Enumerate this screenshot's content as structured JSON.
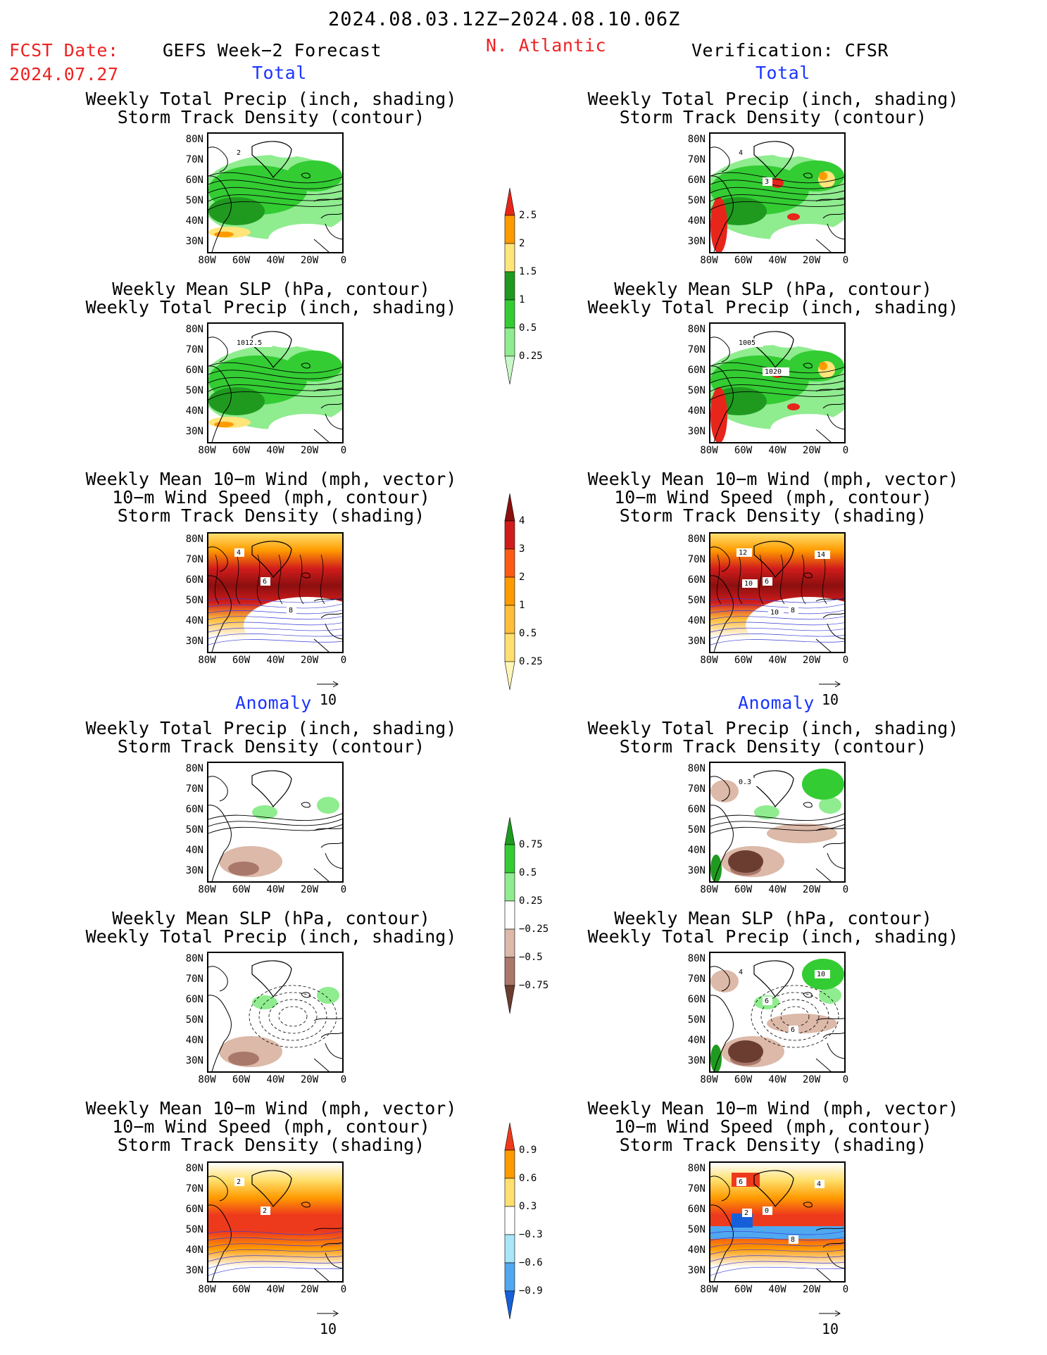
{
  "header": {
    "date_range": "2024.08.03.12Z−2024.08.10.06Z",
    "fcst_label": "FCST Date:",
    "fcst_date": "2024.07.27",
    "forecast_title": "GEFS Week−2 Forecast",
    "region": "N. Atlantic",
    "verification": "Verification: CFSR"
  },
  "sections": {
    "total": "Total",
    "anomaly": "Anomaly"
  },
  "panel_titles": {
    "precip_track": "Weekly Total Precip (inch, shading)\nStorm Track Density (contour)",
    "slp_precip": "Weekly Mean SLP (hPa, contour)\nWeekly Total Precip (inch, shading)",
    "wind_track": "Weekly Mean 10−m Wind (mph, vector)\n10−m Wind Speed (mph, contour)\nStorm Track Density (shading)"
  },
  "axes": {
    "lat_labels": [
      "80N",
      "70N",
      "60N",
      "50N",
      "40N",
      "30N"
    ],
    "lon_labels": [
      "80W",
      "60W",
      "40W",
      "20W",
      "0"
    ]
  },
  "vector_reference": "10",
  "colorbars": {
    "precip_total": {
      "labels": [
        "2.5",
        "2",
        "1.5",
        "1",
        "0.5",
        "0.25"
      ],
      "colors": [
        "#e8251b",
        "#ff9a00",
        "#ffe57a",
        "#1f9a1f",
        "#33cc33",
        "#8fec8f",
        "#c8f7c8"
      ]
    },
    "track_total": {
      "labels": [
        "4",
        "3",
        "2",
        "1",
        "0.5",
        "0.25"
      ],
      "colors": [
        "#8c0f0f",
        "#d11c1c",
        "#ff5a14",
        "#ff9a00",
        "#ffbe3a",
        "#ffe06e",
        "#fff6b8"
      ]
    },
    "precip_anom": {
      "labels": [
        "0.75",
        "0.5",
        "0.25",
        "−0.25",
        "−0.5",
        "−0.75"
      ],
      "colors": [
        "#1f9a1f",
        "#33cc33",
        "#8fec8f",
        "#ffffff",
        "#dcb9a8",
        "#a9786a",
        "#6b3d31"
      ]
    },
    "track_anom": {
      "labels": [
        "0.9",
        "0.6",
        "0.3",
        "−0.3",
        "−0.6",
        "−0.9"
      ],
      "colors": [
        "#ee3a1c",
        "#ff9a00",
        "#ffe06e",
        "#ffffff",
        "#a8e6f8",
        "#4fa8f0",
        "#1560d8"
      ]
    }
  },
  "contour_labels": {
    "gefs_total_precip": [
      "2"
    ],
    "cfsr_total_precip": [
      "4",
      "3"
    ],
    "gefs_total_slp": [
      "1012.5"
    ],
    "cfsr_total_slp": [
      "1005",
      "1020"
    ],
    "gefs_total_wind": [
      "4",
      "6",
      "8"
    ],
    "cfsr_total_wind": [
      "12",
      "6",
      "8",
      "14",
      "10",
      "10"
    ],
    "cfsr_anom_precip": [
      "0.3"
    ],
    "cfsr_anom_slp": [
      "4",
      "6",
      "6",
      "10"
    ],
    "gefs_anom_wind": [
      "2",
      "2"
    ],
    "cfsr_anom_wind": [
      "6",
      "0",
      "8",
      "4",
      "2"
    ]
  },
  "colors": {
    "title_red": "#ee2222",
    "section_blue": "#1a35ff"
  }
}
